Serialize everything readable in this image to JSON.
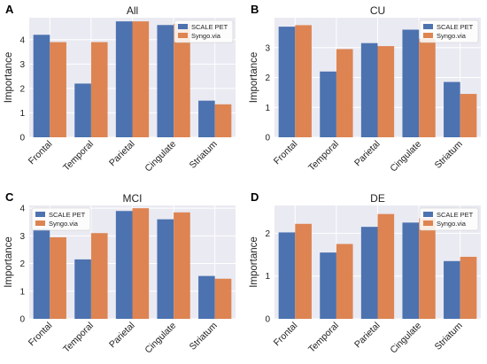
{
  "chart_data": [
    {
      "panel": "A",
      "type": "bar",
      "title": "All",
      "ylabel": "Importance",
      "categories": [
        "Frontal",
        "Temporal",
        "Parietal",
        "Cingulate",
        "Striatum"
      ],
      "ylim": [
        0,
        4.9
      ],
      "yticks": [
        0,
        1,
        2,
        3,
        4
      ],
      "legend": "top-right",
      "series": [
        {
          "name": "SCALE PET",
          "color": "#4c72b0",
          "values": [
            4.2,
            2.2,
            4.75,
            4.6,
            1.5
          ]
        },
        {
          "name": "Syngo.via",
          "color": "#dd8452",
          "values": [
            3.9,
            3.9,
            4.75,
            4.65,
            1.35
          ]
        }
      ]
    },
    {
      "panel": "B",
      "type": "bar",
      "title": "CU",
      "ylabel": "Importance",
      "categories": [
        "Frontal",
        "Temporal",
        "Parietal",
        "Cingulate",
        "Striatum"
      ],
      "ylim": [
        0,
        4.0
      ],
      "yticks": [
        0,
        1,
        2,
        3
      ],
      "legend": "top-right",
      "series": [
        {
          "name": "SCALE PET",
          "color": "#4c72b0",
          "values": [
            3.7,
            2.2,
            3.15,
            3.6,
            1.85
          ]
        },
        {
          "name": "Syngo.via",
          "color": "#dd8452",
          "values": [
            3.75,
            2.95,
            3.05,
            3.3,
            1.45
          ]
        }
      ]
    },
    {
      "panel": "C",
      "type": "bar",
      "title": "MCI",
      "ylabel": "Importance",
      "categories": [
        "Frontal",
        "Temporal",
        "Parietal",
        "Cingulate",
        "Striatum"
      ],
      "ylim": [
        0,
        4.1
      ],
      "yticks": [
        0,
        1,
        2,
        3,
        4
      ],
      "legend": "top-left",
      "series": [
        {
          "name": "SCALE PET",
          "color": "#4c72b0",
          "values": [
            3.25,
            2.15,
            3.9,
            3.6,
            1.55
          ]
        },
        {
          "name": "Syngo.via",
          "color": "#dd8452",
          "values": [
            2.95,
            3.1,
            4.0,
            3.85,
            1.45
          ]
        }
      ]
    },
    {
      "panel": "D",
      "type": "bar",
      "title": "DE",
      "ylabel": "Importance",
      "categories": [
        "Frontal",
        "Temporal",
        "Parietal",
        "Cingulate",
        "Striatum"
      ],
      "ylim": [
        0,
        2.65
      ],
      "yticks": [
        0,
        1,
        2
      ],
      "legend": "top-right",
      "series": [
        {
          "name": "SCALE PET",
          "color": "#4c72b0",
          "values": [
            2.02,
            1.55,
            2.15,
            2.25,
            1.35
          ]
        },
        {
          "name": "Syngo.via",
          "color": "#dd8452",
          "values": [
            2.22,
            1.75,
            2.45,
            2.35,
            1.45
          ]
        }
      ]
    }
  ],
  "style": {
    "plot_background": "#eaeaf2",
    "grid_color": "#ffffff",
    "legend_background": "#ffffff"
  }
}
